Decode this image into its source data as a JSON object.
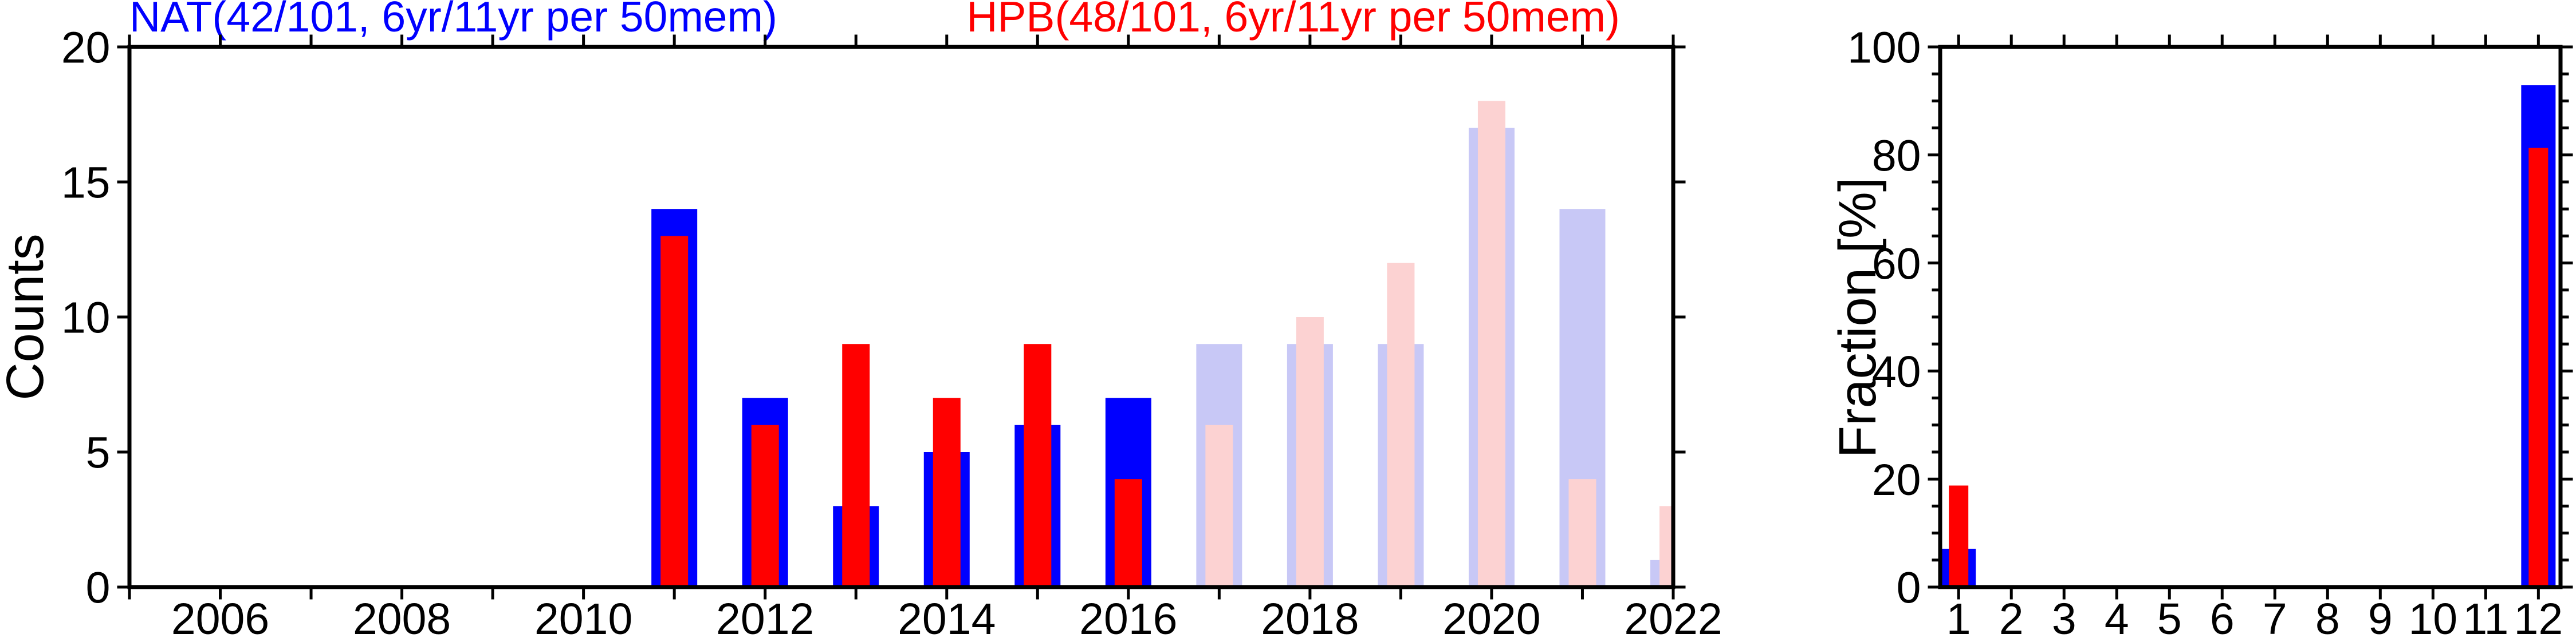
{
  "figure": {
    "background": "#ffffff",
    "titles": {
      "nat": {
        "text": "NAT(42/101, 6yr/11yr per 50mem)",
        "color": "#0000ff"
      },
      "hpb": {
        "text": "HPB(48/101, 6yr/11yr per 50mem)",
        "color": "#ff0000"
      }
    }
  },
  "colors": {
    "nat_solid": "#0000ff",
    "hpb_solid": "#ff0000",
    "nat_faded": "#c8c8f6",
    "hpb_faded": "#fcd2d2",
    "axis": "#000000",
    "tick_label": "#000000"
  },
  "chart_data": [
    {
      "type": "bar",
      "name": "yearly-counts",
      "title": "",
      "xlabel": "",
      "ylabel": "Counts",
      "ylim": [
        0,
        20
      ],
      "yticks": [
        0,
        5,
        10,
        15,
        20
      ],
      "xlim": [
        2005,
        2022
      ],
      "xtick_step": 1,
      "xtick_label_years": [
        2006,
        2008,
        2010,
        2012,
        2014,
        2016,
        2018,
        2020,
        2022
      ],
      "grid": false,
      "legend": "none",
      "categories": [
        2011,
        2012,
        2013,
        2014,
        2015,
        2016,
        2017,
        2018,
        2019,
        2020,
        2021,
        2022
      ],
      "series": [
        {
          "name": "NAT",
          "values": [
            14,
            7,
            3,
            5,
            6,
            7,
            9,
            9,
            9,
            17,
            14,
            1
          ]
        },
        {
          "name": "HPB",
          "values": [
            13,
            6,
            9,
            7,
            9,
            4,
            6,
            10,
            12,
            18,
            4,
            3
          ]
        }
      ],
      "faded_from": 2017,
      "note": "bars 2011-2016 solid colors, 2017-2022 faded colors; HPB bar drawn narrower on top of NAT bar; 2022 bar clipped by right axis"
    },
    {
      "type": "bar",
      "name": "monthly-fraction",
      "title": "",
      "xlabel": "",
      "ylabel": "Fraction [%]",
      "ylim": [
        0,
        100
      ],
      "yticks": [
        0,
        20,
        40,
        60,
        80,
        100
      ],
      "ytick_minor_step": 5,
      "grid": false,
      "legend": "none",
      "categories": [
        1,
        2,
        3,
        4,
        5,
        6,
        7,
        8,
        9,
        10,
        11,
        12
      ],
      "series": [
        {
          "name": "NAT",
          "values": [
            7.1,
            0,
            0,
            0,
            0,
            0,
            0,
            0,
            0,
            0,
            0,
            92.9
          ]
        },
        {
          "name": "HPB",
          "values": [
            18.8,
            0,
            0,
            0,
            0,
            0,
            0,
            0,
            0,
            0,
            0,
            81.3
          ]
        }
      ]
    }
  ]
}
